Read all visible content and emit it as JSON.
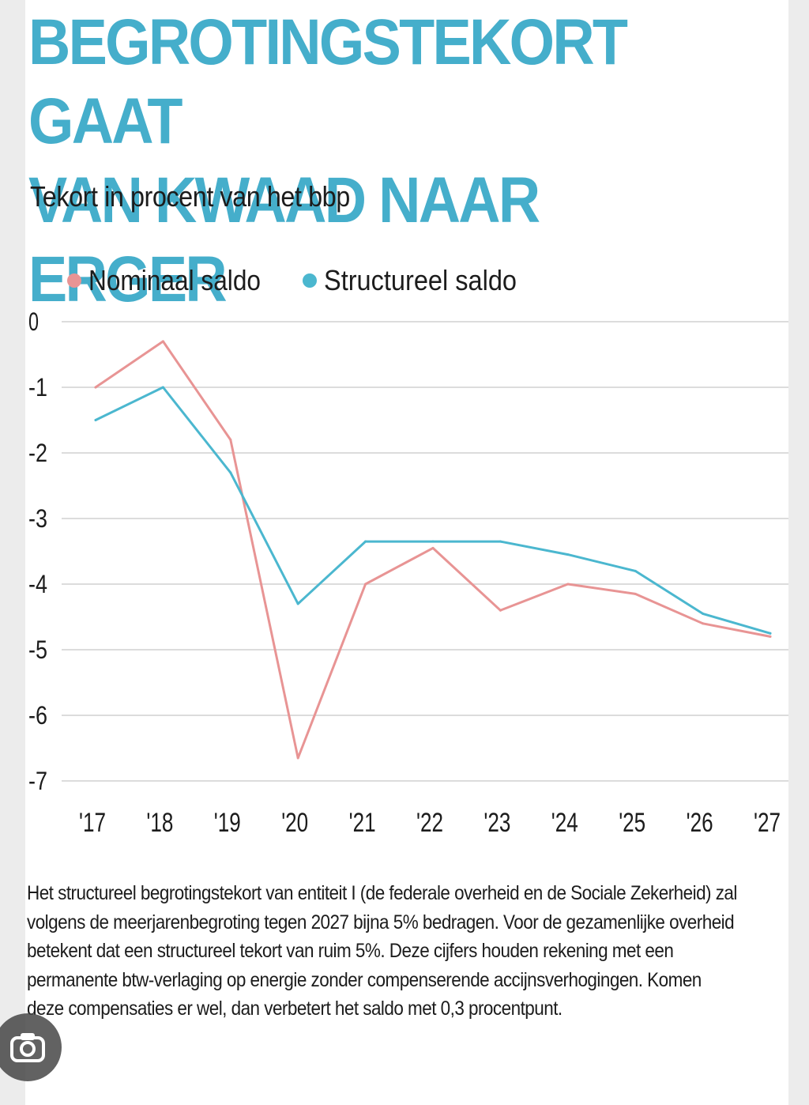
{
  "headline": {
    "line1": "BEGROTINGSTEKORT GAAT",
    "line2": "VAN KWAAD NAAR ERGER"
  },
  "subtitle": "Tekort in procent van het bbp",
  "chart_data": {
    "type": "line",
    "title": "BEGROTINGSTEKORT GAAT VAN KWAAD NAAR ERGER",
    "subtitle": "Tekort in procent van het bbp",
    "xlabel": "",
    "ylabel": "",
    "categories": [
      "'17",
      "'18",
      "'19",
      "'20",
      "'21",
      "'22",
      "'23",
      "'24",
      "'25",
      "'26",
      "'27"
    ],
    "series": [
      {
        "name": "Nominaal saldo",
        "color": "#e89494",
        "values": [
          -1.0,
          -0.3,
          -1.8,
          -6.65,
          -4.0,
          -3.45,
          -4.4,
          -4.0,
          -4.15,
          -4.6,
          -4.8
        ]
      },
      {
        "name": "Structureel saldo",
        "color": "#4bb7cf",
        "values": [
          -1.5,
          -1.0,
          -2.3,
          -4.3,
          -3.35,
          -3.35,
          -3.35,
          -3.55,
          -3.8,
          -4.45,
          -4.75
        ]
      }
    ],
    "yticks": [
      "0",
      "-1",
      "-2",
      "-3",
      "-4",
      "-5",
      "-6",
      "-7"
    ],
    "ylim": [
      -7,
      0
    ],
    "grid": true,
    "legend": "top-left"
  },
  "caption": "Het structureel begrotingstekort van entiteit I (de federale overheid en de Sociale Zekerheid) zal volgens de meerjarenbegroting tegen 2027 bijna 5% bedragen. Voor de gezamenlijke overheid betekent dat een structureel tekort van ruim 5%. Deze cijfers houden rekening met een permanente btw-verlaging op energie zonder compenserende accijnsverhogingen. Komen deze compensaties er wel, dan verbetert het saldo met 0,3 procentpunt.",
  "colors": {
    "headline": "#45aecb",
    "grid": "#dcdcdc"
  }
}
